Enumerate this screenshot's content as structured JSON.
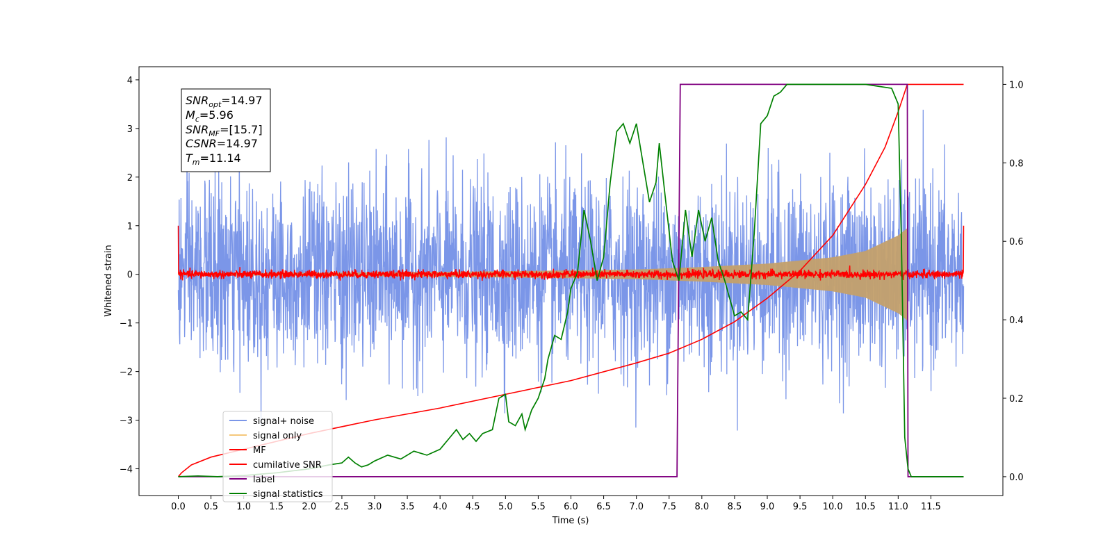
{
  "chart_data": {
    "type": "line",
    "xlabel": "Time (s)",
    "ylabel": "Whitened strain",
    "xlim": [
      -0.6,
      12.6
    ],
    "ylim": [
      -4.55,
      4.27
    ],
    "y2lim": [
      -0.048,
      1.045
    ],
    "x_ticks": [
      "0.0",
      "0.5",
      "1.0",
      "1.5",
      "2.0",
      "2.5",
      "3.0",
      "3.5",
      "4.0",
      "4.5",
      "5.0",
      "5.5",
      "6.0",
      "6.5",
      "7.0",
      "7.5",
      "8.0",
      "8.5",
      "9.0",
      "9.5",
      "10.0",
      "10.5",
      "11.0",
      "11.5"
    ],
    "y_ticks": [
      "−4",
      "−3",
      "−2",
      "−1",
      "0",
      "1",
      "2",
      "3",
      "4"
    ],
    "y2_ticks": [
      "0.0",
      "0.2",
      "0.4",
      "0.6",
      "0.8",
      "1.0"
    ],
    "stats_box": {
      "snr_opt": {
        "base": "SNR",
        "sub": "opt",
        "value": "=14.97"
      },
      "mc": {
        "base": "M",
        "sub": "c",
        "value": "=5.96"
      },
      "snr_mf": {
        "base": "SNR",
        "sub": "MF",
        "value": "=[15.7]"
      },
      "csnr": {
        "base": "CSNR",
        "sub": "",
        "value": "=14.97"
      },
      "tm": {
        "base": "T",
        "sub": "m",
        "value": "=11.14"
      }
    },
    "legend": {
      "placement": "lower-left",
      "entries": [
        {
          "label": "signal+ noise",
          "color": "#7b96e8"
        },
        {
          "label": "signal only",
          "color": "#f5c77a"
        },
        {
          "label": "MF",
          "color": "#ff0000"
        },
        {
          "label": "cumilative SNR",
          "color": "#ff0000"
        },
        {
          "label": "label",
          "color": "#800080"
        },
        {
          "label": "signal statistics",
          "color": "#008000"
        }
      ]
    },
    "series": [
      {
        "name": "signal+ noise",
        "axis": "left",
        "color": "#7b96e8",
        "description_values": {
          "t_start": 0.0,
          "t_end": 12.0,
          "envelope_typical": 2.2,
          "peaks_max": 3.7,
          "peaks_min": -3.9
        }
      },
      {
        "name": "signal only",
        "axis": "left",
        "color": "#c4a06b",
        "amplitude_envelope": {
          "t": [
            0,
            2,
            4,
            6,
            7,
            8,
            9,
            10,
            10.5,
            11.0,
            11.14
          ],
          "amp": [
            0.02,
            0.03,
            0.05,
            0.08,
            0.1,
            0.15,
            0.22,
            0.35,
            0.48,
            0.8,
            0.95
          ]
        }
      },
      {
        "name": "MF",
        "axis": "left",
        "color": "#ff0000",
        "noise_amplitude": 0.07,
        "edge_spike": 1.0
      },
      {
        "name": "cumilative SNR",
        "axis": "right",
        "color": "#ff0000",
        "x": [
          0.0,
          0.05,
          0.2,
          0.5,
          1.0,
          2.0,
          3.0,
          4.0,
          5.0,
          6.0,
          7.0,
          7.5,
          8.0,
          8.5,
          9.0,
          9.5,
          10.0,
          10.5,
          10.8,
          11.0,
          11.14,
          12.0
        ],
        "y": [
          0.0,
          0.01,
          0.03,
          0.05,
          0.07,
          0.11,
          0.145,
          0.175,
          0.21,
          0.245,
          0.29,
          0.315,
          0.35,
          0.395,
          0.455,
          0.525,
          0.615,
          0.745,
          0.84,
          0.93,
          1.0,
          1.0
        ]
      },
      {
        "name": "label",
        "axis": "right",
        "color": "#800080",
        "x": [
          0.0,
          7.62,
          7.67,
          11.14,
          11.15,
          12.0
        ],
        "y": [
          0.0,
          0.0,
          1.0,
          1.0,
          0.0,
          0.0
        ]
      },
      {
        "name": "signal statistics",
        "axis": "right",
        "color": "#008000",
        "x": [
          0.0,
          0.3,
          0.6,
          1.0,
          1.5,
          2.0,
          2.3,
          2.5,
          2.6,
          2.7,
          2.8,
          2.9,
          3.0,
          3.2,
          3.4,
          3.6,
          3.8,
          4.0,
          4.15,
          4.25,
          4.35,
          4.45,
          4.55,
          4.65,
          4.8,
          4.9,
          5.0,
          5.05,
          5.15,
          5.25,
          5.3,
          5.4,
          5.5,
          5.6,
          5.65,
          5.75,
          5.85,
          5.95,
          6.0,
          6.1,
          6.2,
          6.3,
          6.4,
          6.5,
          6.6,
          6.7,
          6.8,
          6.9,
          7.0,
          7.1,
          7.2,
          7.3,
          7.35,
          7.45,
          7.55,
          7.65,
          7.75,
          7.85,
          7.95,
          8.05,
          8.15,
          8.25,
          8.35,
          8.5,
          8.6,
          8.7,
          8.8,
          8.9,
          9.0,
          9.1,
          9.2,
          9.3,
          9.5,
          10.0,
          10.5,
          10.9,
          11.0,
          11.05,
          11.1,
          11.15,
          11.2,
          11.5,
          12.0
        ],
        "y": [
          0.0,
          0.002,
          0.0,
          0.003,
          0.01,
          0.02,
          0.03,
          0.035,
          0.05,
          0.035,
          0.025,
          0.03,
          0.04,
          0.055,
          0.045,
          0.065,
          0.055,
          0.07,
          0.1,
          0.12,
          0.095,
          0.11,
          0.09,
          0.11,
          0.12,
          0.2,
          0.21,
          0.14,
          0.13,
          0.16,
          0.12,
          0.17,
          0.2,
          0.25,
          0.3,
          0.36,
          0.35,
          0.42,
          0.48,
          0.52,
          0.68,
          0.6,
          0.5,
          0.56,
          0.75,
          0.88,
          0.9,
          0.85,
          0.9,
          0.8,
          0.7,
          0.75,
          0.85,
          0.7,
          0.55,
          0.5,
          0.68,
          0.56,
          0.68,
          0.6,
          0.66,
          0.55,
          0.5,
          0.41,
          0.42,
          0.4,
          0.62,
          0.9,
          0.92,
          0.97,
          0.98,
          1.0,
          1.0,
          1.0,
          1.0,
          0.99,
          0.95,
          0.6,
          0.1,
          0.02,
          0.0,
          0.0,
          0.0
        ]
      }
    ]
  }
}
